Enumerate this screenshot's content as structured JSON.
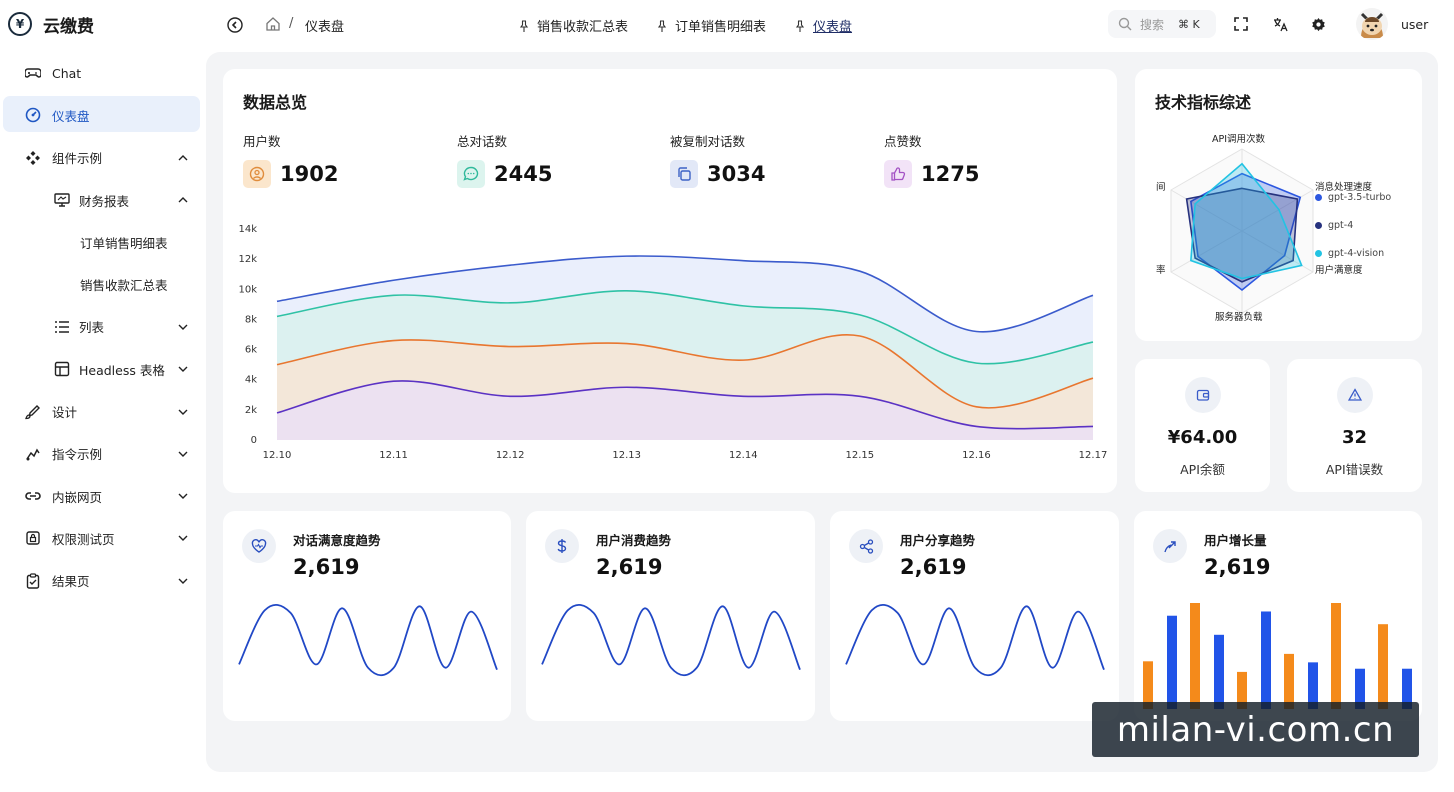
{
  "app": {
    "title": "云缴费",
    "logo_glyph": "¥"
  },
  "sidebar": {
    "items": [
      {
        "label": "Chat",
        "icon": "gamepad-icon"
      },
      {
        "label": "仪表盘",
        "icon": "dashboard-icon",
        "active": true
      },
      {
        "label": "组件示例",
        "icon": "component-icon",
        "expanded": true
      },
      {
        "label": "财务报表",
        "icon": "monitor-icon",
        "expanded": true
      },
      {
        "label": "订单销售明细表"
      },
      {
        "label": "销售收款汇总表"
      },
      {
        "label": "列表",
        "icon": "list-icon"
      },
      {
        "label": "Headless 表格",
        "icon": "table-icon"
      },
      {
        "label": "设计",
        "icon": "brush-icon"
      },
      {
        "label": "指令示例",
        "icon": "command-icon"
      },
      {
        "label": "内嵌网页",
        "icon": "link-icon"
      },
      {
        "label": "权限测试页",
        "icon": "lock-icon"
      },
      {
        "label": "结果页",
        "icon": "clipboard-icon"
      }
    ]
  },
  "header": {
    "breadcrumb_sep": "/",
    "breadcrumb": "仪表盘",
    "tabs": [
      {
        "label": "销售收款汇总表"
      },
      {
        "label": "订单销售明细表"
      },
      {
        "label": "仪表盘",
        "current": true
      }
    ],
    "search_placeholder": "搜索",
    "search_shortcut": "⌘ K",
    "user": "user"
  },
  "overview": {
    "title": "数据总览",
    "stats": [
      {
        "label": "用户数",
        "value": "1902",
        "icon": "user-icon",
        "color": "#e8a050"
      },
      {
        "label": "总对话数",
        "value": "2445",
        "icon": "chat-icon",
        "color": "#35c2a6"
      },
      {
        "label": "被复制对话数",
        "value": "3034",
        "icon": "copy-icon",
        "color": "#4b6fd1"
      },
      {
        "label": "点赞数",
        "value": "1275",
        "icon": "thumb-up-icon",
        "color": "#a65cc8"
      }
    ]
  },
  "chart_data": [
    {
      "type": "area",
      "categories": [
        "12.10",
        "12.11",
        "12.12",
        "12.13",
        "12.14",
        "12.15",
        "12.16",
        "12.17"
      ],
      "yticks": [
        "0",
        "2k",
        "4k",
        "6k",
        "8k",
        "10k",
        "12k",
        "14k"
      ],
      "ylim": [
        0,
        14000
      ],
      "series": [
        {
          "color": "#3b5bcc",
          "values": [
            9200,
            10600,
            11600,
            12200,
            11900,
            11200,
            7200,
            9600
          ]
        },
        {
          "color": "#2fc2a5",
          "values": [
            8200,
            9600,
            9100,
            9900,
            8900,
            8300,
            5100,
            6500
          ]
        },
        {
          "color": "#e8762f",
          "values": [
            5000,
            6600,
            6200,
            6400,
            5300,
            6900,
            2200,
            4100
          ]
        },
        {
          "color": "#5b32c4",
          "values": [
            1800,
            3900,
            2900,
            3500,
            2900,
            2900,
            900,
            900
          ]
        }
      ]
    },
    {
      "type": "radar",
      "title": "技术指标综述",
      "indicators": [
        "API调用次数",
        "消息处理速度",
        "用户满意度",
        "服务器负载",
        "率",
        "间"
      ],
      "series": [
        {
          "name": "gpt-3.5-turbo",
          "color": "#2c57e0",
          "values": [
            70,
            82,
            60,
            72,
            62,
            72
          ]
        },
        {
          "name": "gpt-4",
          "color": "#27327e",
          "values": [
            52,
            78,
            72,
            62,
            66,
            78
          ]
        },
        {
          "name": "gpt-4-vision",
          "color": "#22c3e3",
          "values": [
            82,
            52,
            84,
            58,
            72,
            66
          ]
        }
      ],
      "max": 100
    },
    {
      "type": "line",
      "title": "对话满意度趋势",
      "values": [
        0.1,
        0.92,
        0.88,
        0.1,
        0.95,
        0.05,
        0.05,
        0.98,
        0.05,
        0.9,
        0.02
      ]
    },
    {
      "type": "bar",
      "title": "用户增长量",
      "series": [
        {
          "color": "#f48a1b",
          "values": [
            0.45,
            1.0,
            0.35,
            0.52,
            1.0,
            0.8
          ]
        },
        {
          "color": "#2154e8",
          "values": [
            0.88,
            0.7,
            0.92,
            0.44,
            0.38,
            0.38
          ]
        }
      ]
    }
  ],
  "mini_cards": [
    {
      "value": "¥64.00",
      "label": "API余额",
      "icon": "wallet-icon"
    },
    {
      "value": "32",
      "label": "API错误数",
      "icon": "warning-icon"
    }
  ],
  "trends": [
    {
      "label": "对话满意度趋势",
      "value": "2,619",
      "icon": "heart-icon"
    },
    {
      "label": "用户消费趋势",
      "value": "2,619",
      "icon": "dollar-icon"
    },
    {
      "label": "用户分享趋势",
      "value": "2,619",
      "icon": "share-icon"
    },
    {
      "label": "用户增长量",
      "value": "2,619",
      "icon": "growth-icon"
    }
  ],
  "watermark": "milan-vi.com.cn"
}
